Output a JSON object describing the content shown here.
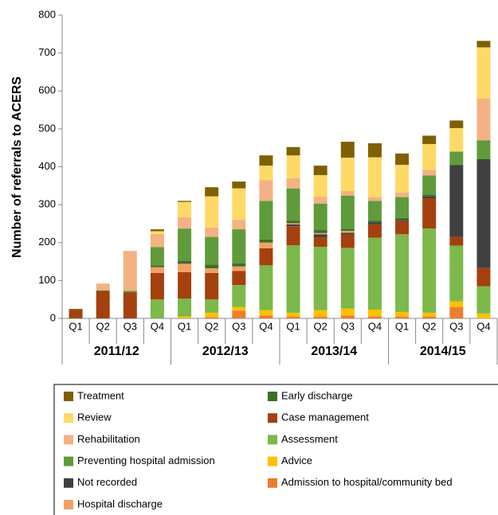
{
  "chart_data": {
    "type": "stacked-bar",
    "y_axis_label": "Number of referrals to ACERS",
    "categories": [
      "Q1",
      "Q2",
      "Q3",
      "Q4",
      "Q1",
      "Q2",
      "Q3",
      "Q4",
      "Q1",
      "Q2",
      "Q3",
      "Q4",
      "Q1",
      "Q2",
      "Q3",
      "Q4"
    ],
    "year_groups": [
      "2011/12",
      "2012/13",
      "2013/14",
      "2014/15"
    ],
    "ylim": [
      0,
      800
    ],
    "yticks": [
      0,
      100,
      200,
      300,
      400,
      500,
      600,
      700,
      800
    ],
    "series": [
      {
        "name": "Treatment",
        "color": "#7f6000",
        "values": [
          3,
          0,
          0,
          5,
          3,
          24,
          18,
          27,
          22,
          25,
          42,
          37,
          30,
          22,
          20,
          17
        ]
      },
      {
        "name": "Early discharge",
        "color": "#3f6e2a",
        "values": [
          0,
          2,
          2,
          5,
          8,
          10,
          8,
          8,
          7,
          8,
          5,
          5,
          5,
          5,
          0,
          0
        ]
      },
      {
        "name": "Review",
        "color": "#ffd966",
        "values": [
          0,
          0,
          0,
          7,
          40,
          82,
          83,
          38,
          60,
          57,
          88,
          105,
          73,
          68,
          62,
          135
        ]
      },
      {
        "name": "Case management",
        "color": "#a5400f",
        "values": [
          22,
          72,
          68,
          70,
          70,
          70,
          37,
          45,
          50,
          25,
          35,
          35,
          35,
          80,
          23,
          48
        ]
      },
      {
        "name": "Rehabilitation",
        "color": "#f4b183",
        "values": [
          0,
          18,
          105,
          35,
          30,
          25,
          25,
          55,
          27,
          18,
          12,
          10,
          12,
          15,
          0,
          110
        ]
      },
      {
        "name": "Assessment",
        "color": "#7cb84a",
        "values": [
          0,
          0,
          0,
          50,
          47,
          35,
          58,
          118,
          178,
          167,
          160,
          190,
          205,
          222,
          147,
          72
        ]
      },
      {
        "name": "Preventing hospital admission",
        "color": "#5f9b3b",
        "values": [
          0,
          0,
          3,
          48,
          85,
          73,
          90,
          102,
          85,
          70,
          88,
          52,
          55,
          50,
          35,
          50
        ]
      },
      {
        "name": "Advice",
        "color": "#ffc000",
        "values": [
          0,
          0,
          0,
          0,
          5,
          12,
          10,
          14,
          10,
          17,
          18,
          18,
          12,
          10,
          15,
          13
        ]
      },
      {
        "name": "Not recorded",
        "color": "#404040",
        "values": [
          0,
          0,
          0,
          0,
          0,
          0,
          0,
          0,
          5,
          8,
          5,
          5,
          3,
          5,
          190,
          287
        ]
      },
      {
        "name": "Admission to hospital/community bed",
        "color": "#ed7d31",
        "values": [
          0,
          0,
          0,
          0,
          0,
          3,
          20,
          8,
          5,
          5,
          8,
          5,
          5,
          5,
          30,
          0
        ]
      },
      {
        "name": "Hospital discharge",
        "color": "#f4a064",
        "values": [
          0,
          0,
          0,
          15,
          22,
          12,
          12,
          15,
          3,
          3,
          5,
          0,
          0,
          0,
          0,
          0
        ]
      }
    ]
  }
}
